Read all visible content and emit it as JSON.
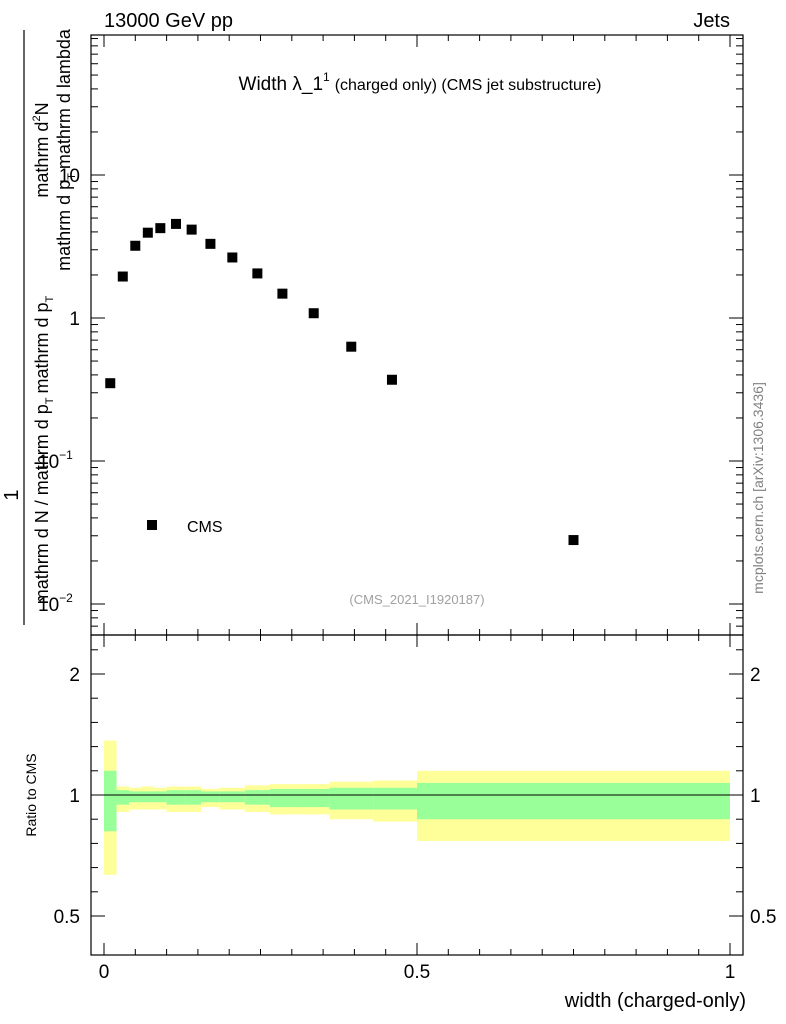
{
  "header": {
    "left": "13000 GeV pp",
    "right": "Jets"
  },
  "side_label": "mcplots.cern.ch [arXiv:1306.3436]",
  "chart_data": [
    {
      "type": "scatter",
      "title_main": "Width λ_1",
      "title_sup": "1",
      "title_rest": "(charged only) (CMS jet substructure)",
      "ylabel_num": "mathrm d",
      "ylabel_num_sup": "2",
      "ylabel_num_tail": "N",
      "ylabel_num2": "mathrm d p",
      "ylabel_num2_sub": "T",
      "ylabel_num3": "mathrm d lambda",
      "ylabel_prefix": "1",
      "ylabel_den": "mathrm d N / mathrm d p",
      "ylabel_den_sub": "T",
      "ylabel_den2": "mathrm d p",
      "ylabel_den2_sub": "T",
      "yscale": "log",
      "ylim": [
        0.006,
        100
      ],
      "xlim": [
        -0.02,
        1.02
      ],
      "yticks": [
        {
          "value": 0.01,
          "base": "10",
          "exp": "−2"
        },
        {
          "value": 0.1,
          "base": "10",
          "exp": "−1"
        },
        {
          "value": 1,
          "base": "1",
          "exp": ""
        },
        {
          "value": 10,
          "base": "10",
          "exp": ""
        }
      ],
      "legend": {
        "position": "lower-left",
        "entries": [
          "CMS"
        ]
      },
      "watermark": "(CMS_2021_I1920187)",
      "series": [
        {
          "name": "CMS",
          "x": [
            0.01,
            0.03,
            0.05,
            0.07,
            0.09,
            0.115,
            0.14,
            0.17,
            0.205,
            0.245,
            0.285,
            0.335,
            0.395,
            0.46,
            0.75
          ],
          "y": [
            0.35,
            1.95,
            3.2,
            3.95,
            4.25,
            4.55,
            4.15,
            3.3,
            2.65,
            2.05,
            1.48,
            1.08,
            0.63,
            0.37,
            0.028
          ]
        }
      ]
    },
    {
      "type": "area",
      "ylabel": "Ratio to CMS",
      "xlabel": "width (charged-only)",
      "ylim": [
        0.35,
        2.3
      ],
      "xlim": [
        -0.02,
        1.02
      ],
      "yticks": [
        "0.5",
        "1",
        "2"
      ],
      "ytick_values": [
        0.5,
        1,
        2
      ],
      "xticks": [
        "0",
        "0.5",
        "1"
      ],
      "xtick_values": [
        0,
        0.5,
        1
      ],
      "colors": {
        "inner_band": "#99ff99",
        "outer_band": "#ffff99",
        "reference_line": "#000000"
      },
      "bins": [
        {
          "lo": 0.0,
          "hi": 0.02,
          "g_lo": 0.85,
          "g_hi": 1.2,
          "y_lo": 0.67,
          "y_hi": 1.45
        },
        {
          "lo": 0.02,
          "hi": 0.04,
          "g_lo": 0.96,
          "g_hi": 1.04,
          "y_lo": 0.93,
          "y_hi": 1.07
        },
        {
          "lo": 0.04,
          "hi": 0.06,
          "g_lo": 0.97,
          "g_hi": 1.03,
          "y_lo": 0.94,
          "y_hi": 1.06
        },
        {
          "lo": 0.06,
          "hi": 0.08,
          "g_lo": 0.97,
          "g_hi": 1.03,
          "y_lo": 0.94,
          "y_hi": 1.07
        },
        {
          "lo": 0.08,
          "hi": 0.1,
          "g_lo": 0.97,
          "g_hi": 1.03,
          "y_lo": 0.94,
          "y_hi": 1.06
        },
        {
          "lo": 0.1,
          "hi": 0.13,
          "g_lo": 0.96,
          "g_hi": 1.04,
          "y_lo": 0.93,
          "y_hi": 1.07
        },
        {
          "lo": 0.13,
          "hi": 0.155,
          "g_lo": 0.96,
          "g_hi": 1.04,
          "y_lo": 0.93,
          "y_hi": 1.07
        },
        {
          "lo": 0.155,
          "hi": 0.185,
          "g_lo": 0.97,
          "g_hi": 1.03,
          "y_lo": 0.95,
          "y_hi": 1.05
        },
        {
          "lo": 0.185,
          "hi": 0.225,
          "g_lo": 0.97,
          "g_hi": 1.03,
          "y_lo": 0.94,
          "y_hi": 1.06
        },
        {
          "lo": 0.225,
          "hi": 0.265,
          "g_lo": 0.96,
          "g_hi": 1.04,
          "y_lo": 0.93,
          "y_hi": 1.08
        },
        {
          "lo": 0.265,
          "hi": 0.31,
          "g_lo": 0.95,
          "g_hi": 1.05,
          "y_lo": 0.92,
          "y_hi": 1.09
        },
        {
          "lo": 0.31,
          "hi": 0.36,
          "g_lo": 0.95,
          "g_hi": 1.05,
          "y_lo": 0.92,
          "y_hi": 1.09
        },
        {
          "lo": 0.36,
          "hi": 0.43,
          "g_lo": 0.94,
          "g_hi": 1.06,
          "y_lo": 0.9,
          "y_hi": 1.11
        },
        {
          "lo": 0.43,
          "hi": 0.5,
          "g_lo": 0.94,
          "g_hi": 1.06,
          "y_lo": 0.89,
          "y_hi": 1.12
        },
        {
          "lo": 0.5,
          "hi": 1.0,
          "g_lo": 0.9,
          "g_hi": 1.1,
          "y_lo": 0.81,
          "y_hi": 1.2
        }
      ],
      "reference": 1
    }
  ]
}
